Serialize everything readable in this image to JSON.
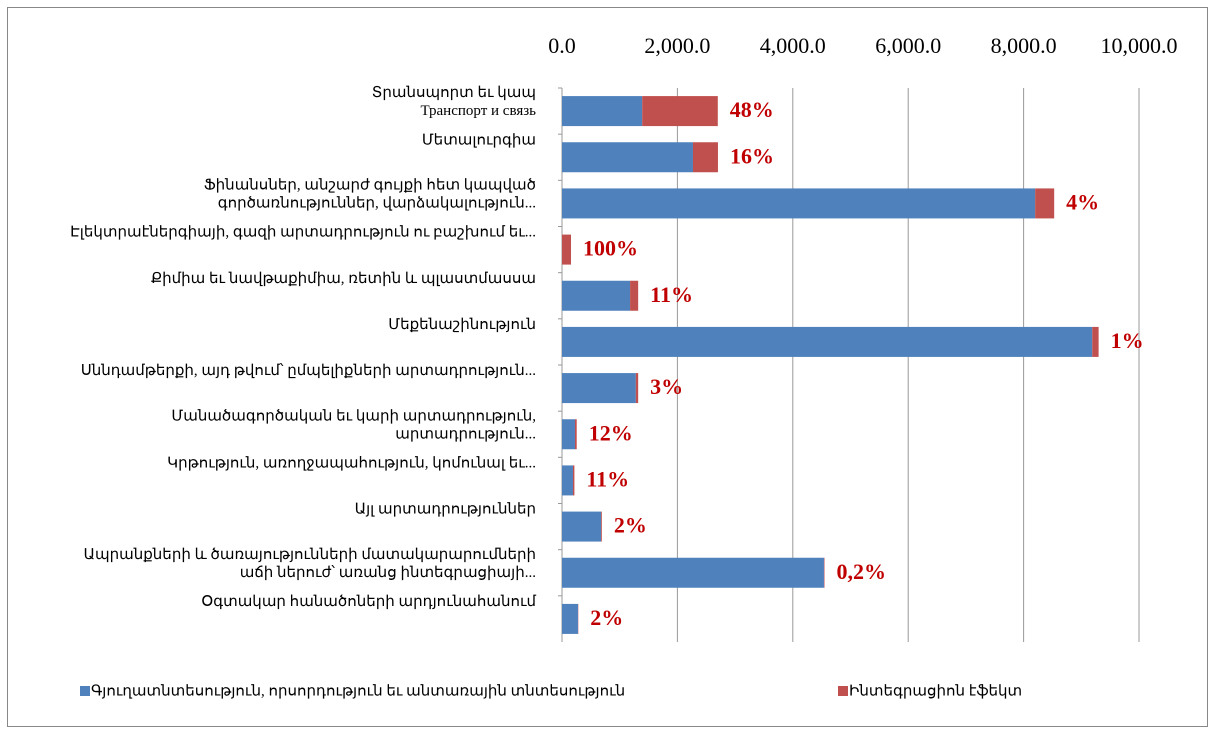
{
  "chart_data": {
    "type": "stacked-barh",
    "categories": [
      "Տրանսպորտ եւ կապ\nТранспорт и связь",
      "Մետալուրգիա",
      "Ֆինանսներ, անշարժ գույքի հետ կապված\nգործառնություններ, վարձակալություն...",
      "Էլեկտրաէներգիայի, գազի արտադրություն ու բաշխում եւ...",
      "Քիմիա եւ նավթաքիմիա, ռետին և պլաստմասսա",
      "Մեքենաշինություն",
      "Սննդամթերքի, այդ թվում՝ ըմպելիքների արտադրություն...",
      "Մանածագործական եւ կարի արտադրություն,\nարտադրություն...",
      "Կրթություն, առողջապահություն, կոմունալ եւ...",
      "Այլ արտադրություններ",
      "Ապրանքների և ծառայությունների մատակարարումների\nաճի ներուժ՝ առանց ինտեգրացիայի...",
      "Օգտակար հանածոների արդյունահանում"
    ],
    "series": [
      {
        "name": "Գյուղատնտեսություն, որսորդություն եւ անտառային տնտեսություն",
        "color": "#4f81bd",
        "values": [
          1390,
          2270,
          8200,
          0,
          1180,
          9190,
          1280,
          225,
          190,
          676,
          4540,
          277
        ]
      },
      {
        "name": "Ինտեգրացիոն էֆեկտ",
        "color": "#c0504d",
        "values": [
          1310,
          433,
          330,
          156,
          140,
          110,
          40,
          30,
          25,
          14,
          9,
          5
        ]
      }
    ],
    "annotations": [
      "48%",
      "16%",
      "4%",
      "100%",
      "11%",
      "1%",
      "3%",
      "12%",
      "11%",
      "2%",
      "0,2%",
      "2%"
    ],
    "xlim": [
      0,
      10000
    ],
    "xticks": [
      {
        "value": 0,
        "label": "0.0"
      },
      {
        "value": 2000,
        "label": "2,000.0"
      },
      {
        "value": 4000,
        "label": "4,000.0"
      },
      {
        "value": 6000,
        "label": "6,000.0"
      },
      {
        "value": 8000,
        "label": "8,000.0"
      },
      {
        "value": 10000,
        "label": "10,000.0"
      }
    ],
    "grid": true,
    "legend": "bottom"
  }
}
